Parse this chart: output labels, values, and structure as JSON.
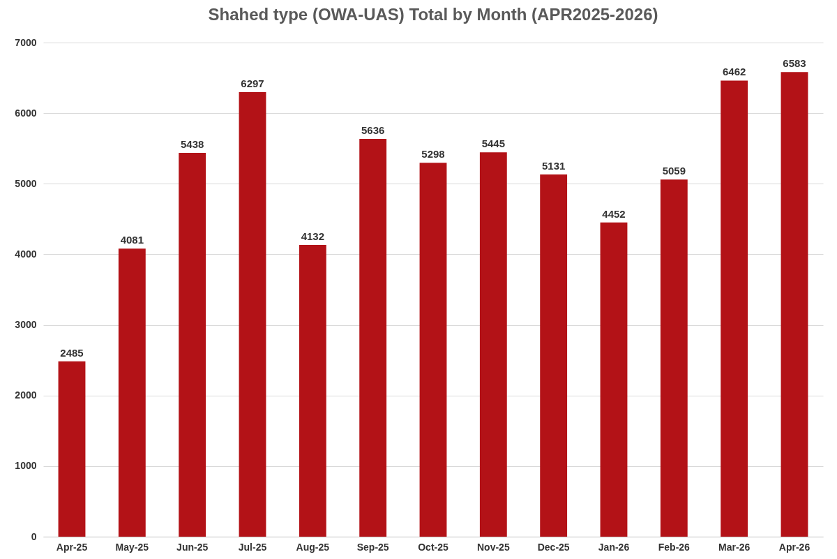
{
  "chart_data": {
    "type": "bar",
    "title": "Shahed type (OWA-UAS) Total by Month (APR2025-2026)",
    "categories": [
      "Apr-25",
      "May-25",
      "Jun-25",
      "Jul-25",
      "Aug-25",
      "Sep-25",
      "Oct-25",
      "Nov-25",
      "Dec-25",
      "Jan-26",
      "Feb-26",
      "Mar-26",
      "Apr-26"
    ],
    "values": [
      2485,
      4081,
      5438,
      6297,
      4132,
      5636,
      5298,
      5445,
      5131,
      4452,
      5059,
      6462,
      6583
    ],
    "color": "#b31217",
    "ylim": [
      0,
      7000
    ],
    "yticks": [
      0,
      1000,
      2000,
      3000,
      4000,
      5000,
      6000,
      7000
    ],
    "grid": "y",
    "data_labels": true
  }
}
